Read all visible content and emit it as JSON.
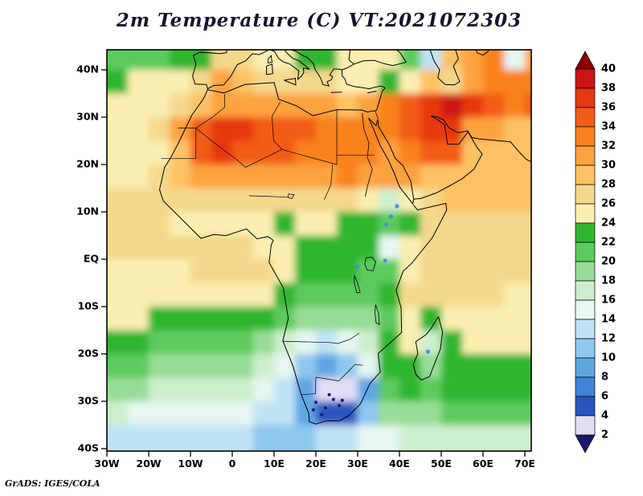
{
  "title": "2m Temperature (C) VT:2021072303",
  "footer": "GrADS: IGES/COLA",
  "chart_data": {
    "type": "heatmap",
    "title": "2m Temperature (C) VT:2021072303",
    "variable": "2m Temperature",
    "units": "C",
    "valid_time_label": "VT:2021072303",
    "region": "Africa / Southern Europe / Middle East",
    "x_axis": {
      "ticks": [
        {
          "label": "30W",
          "deg": -30
        },
        {
          "label": "20W",
          "deg": -20
        },
        {
          "label": "10W",
          "deg": -10
        },
        {
          "label": "0",
          "deg": 0
        },
        {
          "label": "10E",
          "deg": 10
        },
        {
          "label": "20E",
          "deg": 20
        },
        {
          "label": "30E",
          "deg": 30
        },
        {
          "label": "40E",
          "deg": 40
        },
        {
          "label": "50E",
          "deg": 50
        },
        {
          "label": "60E",
          "deg": 60
        },
        {
          "label": "70E",
          "deg": 70
        }
      ]
    },
    "y_axis": {
      "ticks": [
        {
          "label": "40N",
          "deg": 40
        },
        {
          "label": "30N",
          "deg": 30
        },
        {
          "label": "20N",
          "deg": 20
        },
        {
          "label": "10N",
          "deg": 10
        },
        {
          "label": "EQ",
          "deg": 0
        },
        {
          "label": "10S",
          "deg": -10
        },
        {
          "label": "20S",
          "deg": -20
        },
        {
          "label": "30S",
          "deg": -30
        },
        {
          "label": "40S",
          "deg": -40
        }
      ]
    },
    "colorbar": {
      "labels": [
        40,
        38,
        36,
        34,
        32,
        30,
        28,
        26,
        24,
        22,
        20,
        18,
        16,
        14,
        12,
        10,
        8,
        6,
        4,
        2
      ],
      "arrow_top": true,
      "arrow_bottom": true,
      "colors_top_to_bottom": [
        "#8e0000",
        "#cc1414",
        "#e63911",
        "#f25c19",
        "#f9821e",
        "#fca33f",
        "#fdc263",
        "#f4d88c",
        "#faeeb0",
        "#2fb62f",
        "#5dca5d",
        "#97dd97",
        "#cdeecd",
        "#e6f6f1",
        "#bfe3f5",
        "#8fc8ee",
        "#5ea6e2",
        "#3f82d6",
        "#2a55c0",
        "#e1def4",
        "#18186e"
      ]
    },
    "grid": {
      "lon_min": -30,
      "lon_step": 5,
      "lat_max": 45,
      "lat_step": 5,
      "temps_c": [
        [
          21,
          21,
          21,
          22,
          23,
          26,
          27,
          25,
          24,
          23,
          23,
          24,
          24,
          24,
          20,
          13,
          28,
          31,
          33,
          15,
          31
        ],
        [
          23,
          24,
          24,
          25,
          26,
          30,
          29,
          27,
          27,
          26,
          26,
          25,
          24,
          22,
          24,
          28,
          27,
          30,
          32,
          33,
          32
        ],
        [
          25,
          25,
          25,
          26,
          29,
          31,
          31,
          30,
          30,
          30,
          30,
          29,
          30,
          32,
          34,
          37,
          38,
          36,
          34,
          33,
          34
        ],
        [
          24,
          25,
          26,
          30,
          35,
          37,
          36,
          35,
          35,
          34,
          33,
          32,
          32,
          33,
          35,
          36,
          36,
          31,
          30,
          29,
          29
        ],
        [
          24,
          24,
          25,
          29,
          34,
          36,
          35,
          34,
          34,
          33,
          33,
          32,
          32,
          31,
          33,
          35,
          34,
          29,
          29,
          28,
          28
        ],
        [
          25,
          25,
          26,
          28,
          30,
          31,
          31,
          30,
          31,
          31,
          31,
          32,
          31,
          31,
          30,
          29,
          29,
          28,
          28,
          28,
          28
        ],
        [
          26,
          26,
          26,
          26,
          27,
          27,
          27,
          27,
          27,
          27,
          27,
          26,
          25,
          17,
          25,
          27,
          28,
          28,
          28,
          28,
          28
        ],
        [
          26,
          26,
          26,
          25,
          25,
          24,
          24,
          24,
          23,
          24,
          24,
          23,
          23,
          20,
          22,
          26,
          27,
          27,
          27,
          27,
          27
        ],
        [
          26,
          26,
          26,
          26,
          26,
          26,
          26,
          25,
          24,
          23,
          23,
          23,
          22,
          15,
          24,
          27,
          27,
          27,
          27,
          27,
          27
        ],
        [
          25,
          25,
          25,
          25,
          26,
          26,
          26,
          26,
          24,
          23,
          22,
          22,
          20,
          20,
          25,
          26,
          26,
          26,
          26,
          26,
          26
        ],
        [
          25,
          25,
          24,
          24,
          24,
          24,
          24,
          24,
          23,
          21,
          20,
          20,
          20,
          22,
          26,
          26,
          26,
          26,
          26,
          25,
          25
        ],
        [
          24,
          24,
          23,
          23,
          23,
          23,
          23,
          22,
          21,
          19,
          18,
          18,
          19,
          21,
          25,
          23,
          25,
          25,
          25,
          25,
          25
        ],
        [
          22,
          22,
          21,
          21,
          20,
          20,
          20,
          19,
          17,
          14,
          13,
          14,
          16,
          22,
          24,
          16,
          23,
          24,
          24,
          24,
          24
        ],
        [
          20,
          20,
          19,
          19,
          18,
          18,
          18,
          17,
          15,
          11,
          9,
          10,
          14,
          22,
          23,
          18,
          22,
          22,
          23,
          23,
          23
        ],
        [
          18,
          18,
          17,
          17,
          16,
          16,
          16,
          15,
          13,
          8,
          3,
          3,
          8,
          21,
          22,
          21,
          22,
          22,
          22,
          22,
          22
        ],
        [
          16,
          15,
          15,
          15,
          14,
          14,
          14,
          13,
          12,
          9,
          4,
          5,
          11,
          18,
          19,
          19,
          20,
          20,
          20,
          20,
          20
        ],
        [
          13,
          13,
          12,
          12,
          12,
          12,
          12,
          11,
          11,
          11,
          12,
          13,
          14,
          15,
          16,
          16,
          17,
          17,
          17,
          17,
          17
        ]
      ]
    },
    "cold_pockets_lonlat": [
      [
        20.0,
        -30.2
      ],
      [
        22.3,
        -31.4
      ],
      [
        24.2,
        -29.6
      ],
      [
        21.4,
        -32.8
      ],
      [
        25.6,
        -30.9
      ],
      [
        23.2,
        -28.6
      ],
      [
        19.4,
        -31.8
      ],
      [
        26.3,
        -29.8
      ]
    ],
    "highland_cool_spots_lonlat": [
      [
        38.0,
        9.0
      ],
      [
        36.8,
        7.3
      ],
      [
        39.4,
        11.2
      ],
      [
        36.6,
        -0.3
      ],
      [
        29.8,
        -1.6
      ],
      [
        46.8,
        -19.5
      ]
    ]
  }
}
